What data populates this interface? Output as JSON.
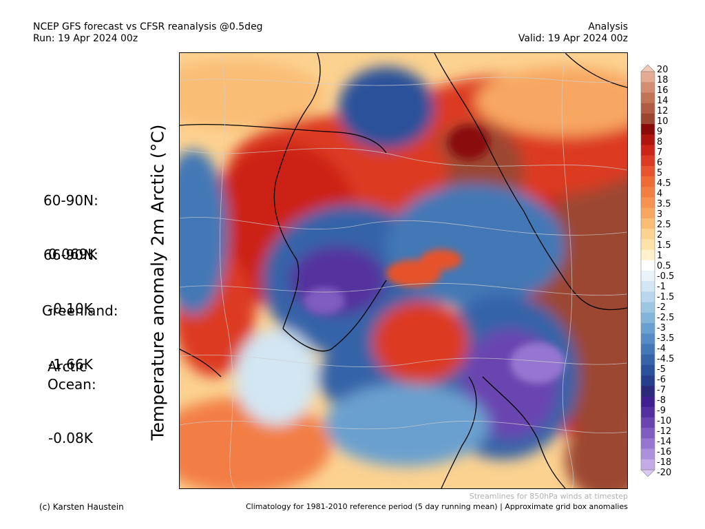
{
  "header": {
    "title": "NCEP GFS forecast vs CFSR reanalysis @0.5deg",
    "run": "Run: 19 Apr 2024 00z",
    "mode": "Analysis",
    "valid": "Valid: 19 Apr 2024 00z"
  },
  "y_label": "Temperature anomaly 2m Arctic (°C)",
  "stats": [
    {
      "label": "60-90N:",
      "value": "0.069K"
    },
    {
      "label": "66-90N:",
      "value": "-0.10K"
    },
    {
      "label": "Greenland:",
      "value": "-1.66K"
    },
    {
      "label": "Arctic\nOcean:",
      "value": "-0.08K"
    }
  ],
  "colorbar": {
    "labels": [
      "20",
      "18",
      "16",
      "14",
      "12",
      "10",
      "9",
      "8",
      "7",
      "6",
      "5",
      "4.5",
      "4",
      "3.5",
      "3",
      "2.5",
      "2",
      "1.5",
      "1",
      "0.5",
      "-0.5",
      "-1",
      "-1.5",
      "-2",
      "-2.5",
      "-3",
      "-3.5",
      "-4",
      "-4.5",
      "-5",
      "-6",
      "-7",
      "-8",
      "-9",
      "-10",
      "-12",
      "-14",
      "-16",
      "-18",
      "-20"
    ],
    "colors": [
      "#f4c8b4",
      "#e4ab92",
      "#d28e72",
      "#c17458",
      "#b05c44",
      "#9c4632",
      "#8a0a08",
      "#b0140e",
      "#cc2418",
      "#dc3a22",
      "#e6532c",
      "#ee6b38",
      "#f27e44",
      "#f69252",
      "#f8a762",
      "#fabd76",
      "#fcd290",
      "#fde3aa",
      "#fef1cc",
      "#ffffff",
      "#eaf3fa",
      "#d2e6f3",
      "#b8d7ec",
      "#9dc6e3",
      "#83b4da",
      "#6aa0cf",
      "#548cc3",
      "#4378b6",
      "#3564a8",
      "#2b519a",
      "#263e8b",
      "#2d2a7c",
      "#3e2090",
      "#54309e",
      "#6a45b0",
      "#7f5cc0",
      "#9676d0",
      "#ac90dc",
      "#c4abe8",
      "#d9c8f2"
    ]
  },
  "footer": {
    "streamlines_note": "Streamlines for 850hPa winds at timestep",
    "credit": "(c) Karsten Haustein",
    "climatology_note": "Climatology for 1981-2010 reference period (5 day running mean) | Approximate grid box anomalies"
  }
}
